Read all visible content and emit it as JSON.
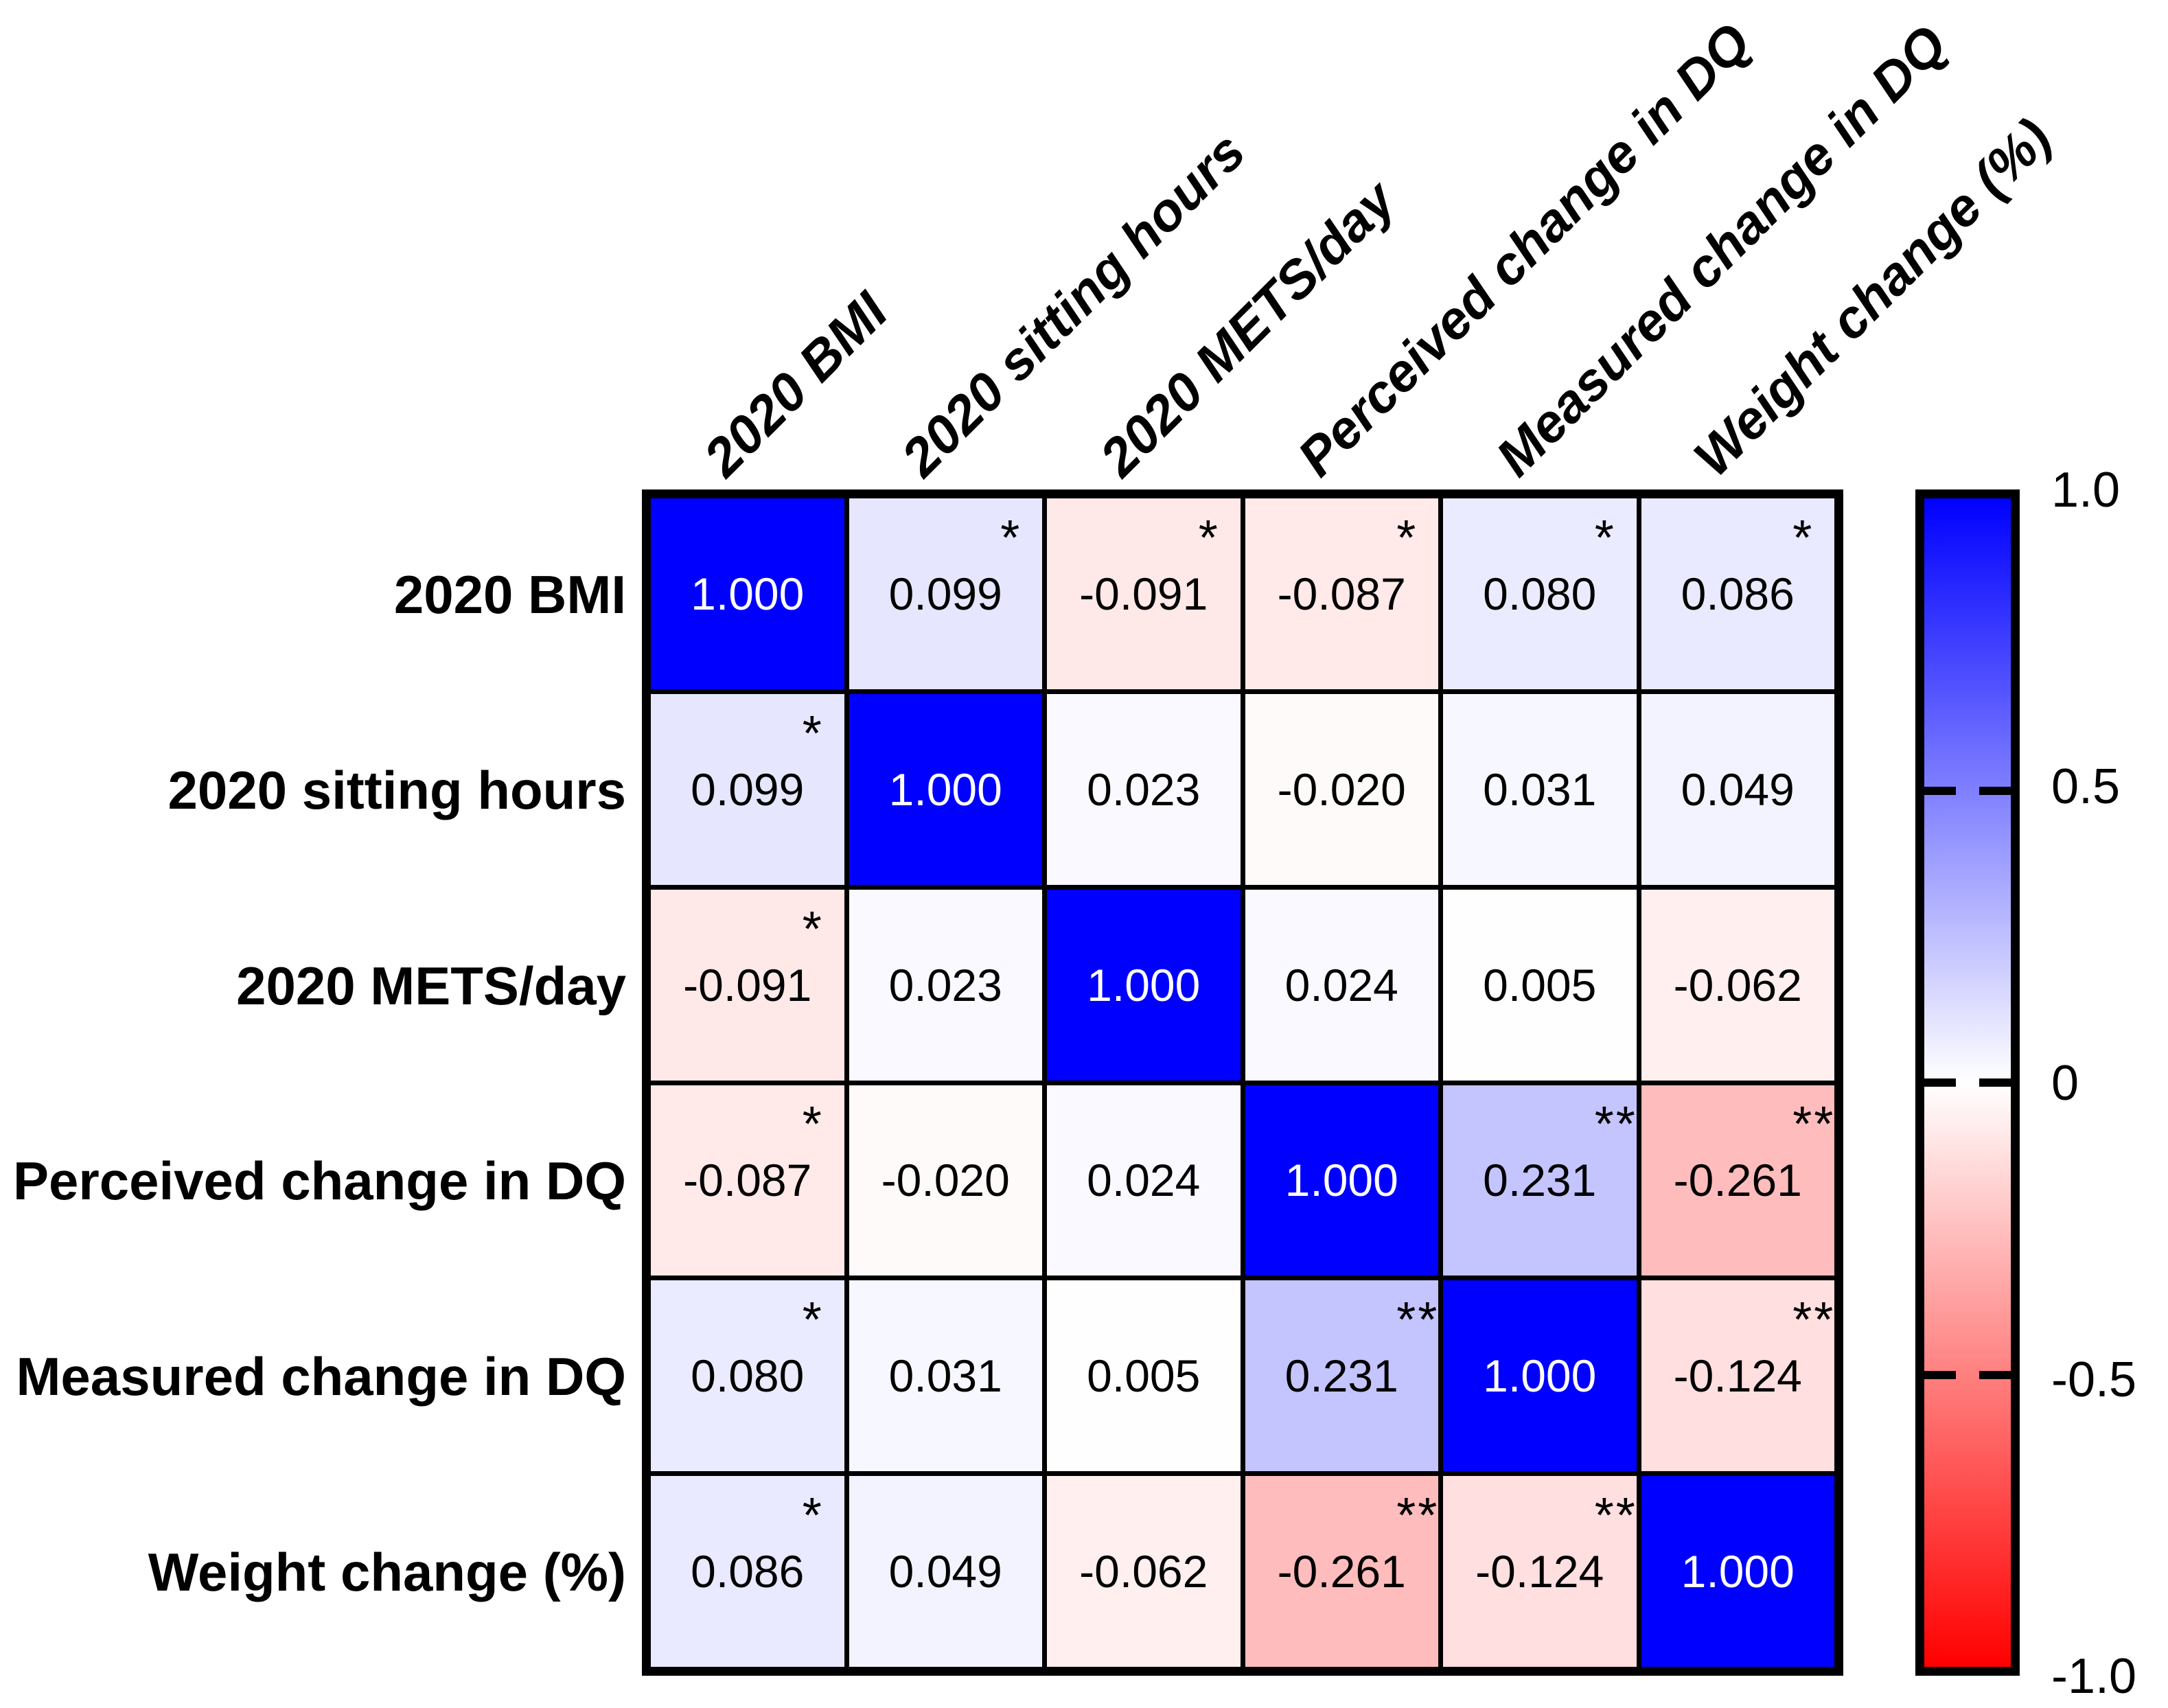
{
  "chart_data": {
    "type": "heatmap",
    "variables": [
      "2020 BMI",
      "2020 sitting hours",
      "2020 METS/day",
      "Perceived change in DQ",
      "Measured change in DQ",
      "Weight change (%)"
    ],
    "matrix": [
      [
        1.0,
        0.099,
        -0.091,
        -0.087,
        0.08,
        0.086
      ],
      [
        0.099,
        1.0,
        0.023,
        -0.02,
        0.031,
        0.049
      ],
      [
        -0.091,
        0.023,
        1.0,
        0.024,
        0.005,
        -0.062
      ],
      [
        -0.087,
        -0.02,
        0.024,
        1.0,
        0.231,
        -0.261
      ],
      [
        0.08,
        0.031,
        0.005,
        0.231,
        1.0,
        -0.124
      ],
      [
        0.086,
        0.049,
        -0.062,
        -0.261,
        -0.124,
        1.0
      ]
    ],
    "cell_labels": [
      [
        "1.000",
        "0.099",
        "-0.091",
        "-0.087",
        "0.080",
        "0.086"
      ],
      [
        "0.099",
        "1.000",
        "0.023",
        "-0.020",
        "0.031",
        "0.049"
      ],
      [
        "-0.091",
        "0.023",
        "1.000",
        "0.024",
        "0.005",
        "-0.062"
      ],
      [
        "-0.087",
        "-0.020",
        "0.024",
        "1.000",
        "0.231",
        "-0.261"
      ],
      [
        "0.080",
        "0.031",
        "0.005",
        "0.231",
        "1.000",
        "-0.124"
      ],
      [
        "0.086",
        "0.049",
        "-0.062",
        "-0.261",
        "-0.124",
        "1.000"
      ]
    ],
    "significance": [
      [
        "",
        "*",
        "*",
        "*",
        "*",
        "*"
      ],
      [
        "*",
        "",
        "",
        "",
        "",
        ""
      ],
      [
        "*",
        "",
        "",
        "",
        "",
        ""
      ],
      [
        "*",
        "",
        "",
        "",
        "**",
        "**"
      ],
      [
        "*",
        "",
        "",
        "**",
        "",
        "**"
      ],
      [
        "*",
        "",
        "",
        "**",
        "**",
        ""
      ]
    ],
    "value_range": [
      -1,
      1
    ],
    "colors": {
      "positive_max": "#0000FF",
      "zero": "#FFFFFF",
      "negative_min": "#FF0000",
      "grid_line": "#000000",
      "diagonal_text": "#FFFFFF",
      "cell_text": "#000000"
    },
    "colorbar_ticks": [
      {
        "label": "1.0",
        "value": 1.0
      },
      {
        "label": "0.5",
        "value": 0.5
      },
      {
        "label": "0",
        "value": 0.0
      },
      {
        "label": "-0.5",
        "value": -0.5
      },
      {
        "label": "-1.0",
        "value": -1.0
      }
    ],
    "legend_position": "right",
    "grid": true
  }
}
